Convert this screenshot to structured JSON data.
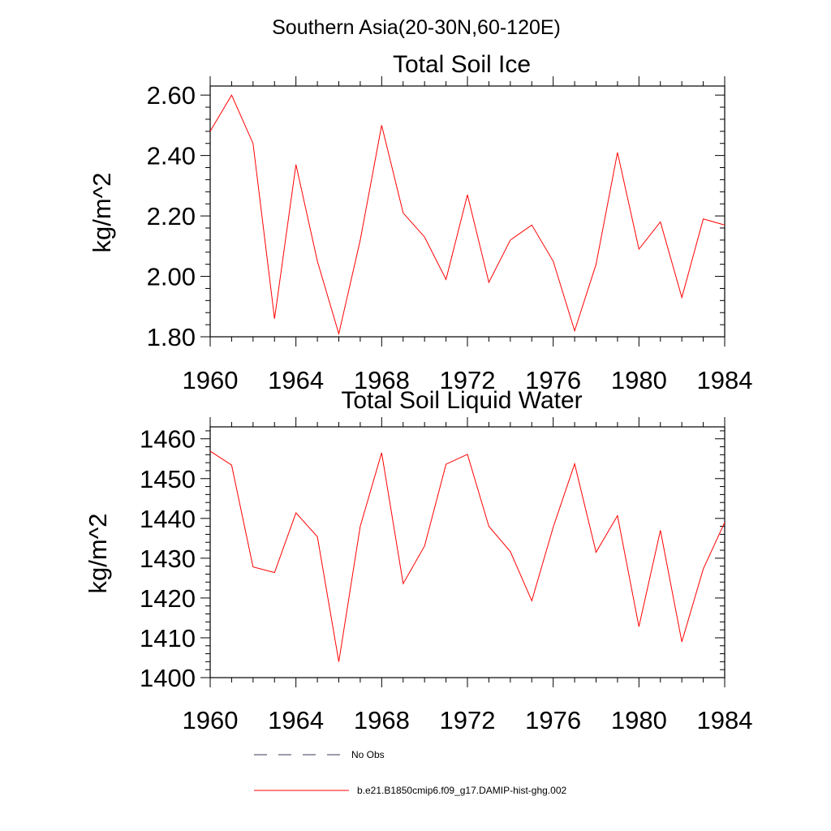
{
  "figure_title": "Southern Asia(20-30N,60-120E)",
  "legend": [
    {
      "label": "No Obs",
      "color": "#3a3a5a",
      "style": "dashed"
    },
    {
      "label": "b.e21.B1850cmip6.f09_g17.DAMIP-hist-ghg.002",
      "color": "#ff0000",
      "style": "solid"
    }
  ],
  "chart_data": [
    {
      "type": "line",
      "title": "Total Soil Ice",
      "xlabel": "",
      "ylabel": "kg/m^2",
      "xlim": [
        1960,
        1984
      ],
      "ylim": [
        1.8,
        2.63
      ],
      "xticks": [
        "1960",
        "1964",
        "1968",
        "1972",
        "1976",
        "1980",
        "1984"
      ],
      "yticks": [
        "1.80",
        "2.00",
        "2.20",
        "2.40",
        "2.60"
      ],
      "series": [
        {
          "color": "#ff0000",
          "x": [
            1960,
            1961,
            1962,
            1963,
            1964,
            1965,
            1966,
            1967,
            1968,
            1969,
            1970,
            1971,
            1972,
            1973,
            1974,
            1975,
            1976,
            1977,
            1978,
            1979,
            1980,
            1981,
            1982,
            1983,
            1984
          ],
          "y": [
            2.48,
            2.6,
            2.44,
            1.86,
            2.37,
            2.05,
            1.81,
            2.12,
            2.5,
            2.21,
            2.13,
            1.99,
            2.27,
            1.98,
            2.12,
            2.17,
            2.05,
            1.82,
            2.04,
            2.41,
            2.09,
            2.18,
            1.93,
            2.19,
            2.17
          ]
        }
      ]
    },
    {
      "type": "line",
      "title": "Total Soil Liquid Water",
      "xlabel": "",
      "ylabel": "kg/m^2",
      "xlim": [
        1960,
        1984
      ],
      "ylim": [
        1400,
        1463
      ],
      "xticks": [
        "1960",
        "1964",
        "1968",
        "1972",
        "1976",
        "1980",
        "1984"
      ],
      "yticks": [
        "1400",
        "1410",
        "1420",
        "1430",
        "1440",
        "1450",
        "1460"
      ],
      "series": [
        {
          "color": "#ff0000",
          "x": [
            1960,
            1961,
            1962,
            1963,
            1964,
            1965,
            1966,
            1967,
            1968,
            1969,
            1970,
            1971,
            1972,
            1973,
            1974,
            1975,
            1976,
            1977,
            1978,
            1979,
            1980,
            1981,
            1982,
            1983,
            1984
          ],
          "y": [
            1456.9,
            1453.4,
            1427.8,
            1426.4,
            1441.4,
            1435.4,
            1404.0,
            1438.0,
            1456.5,
            1423.6,
            1433.1,
            1453.6,
            1456.1,
            1438.0,
            1431.7,
            1419.3,
            1437.8,
            1453.7,
            1431.5,
            1440.7,
            1412.8,
            1437.0,
            1409.0,
            1427.3,
            1439.0
          ]
        }
      ]
    }
  ]
}
